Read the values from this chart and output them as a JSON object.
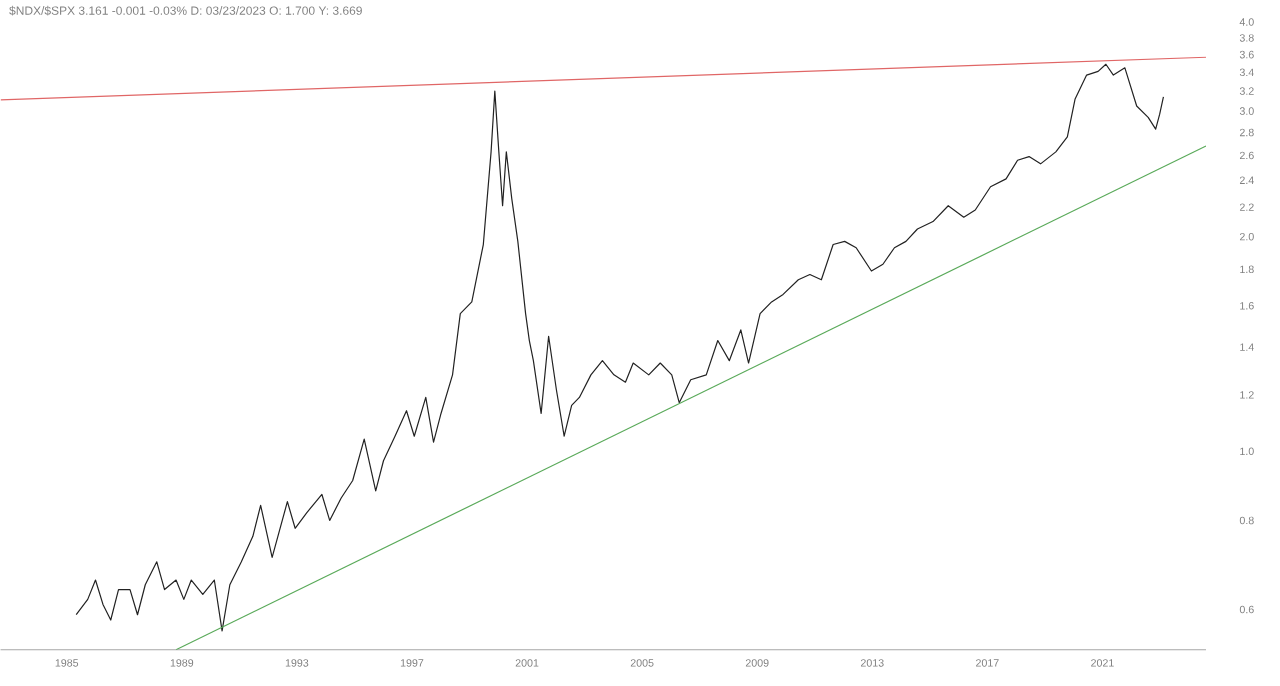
{
  "chart_data": {
    "type": "line",
    "title": "$NDX/$SPX 3.161 -0.001 -0.03% D: 03/23/2023 O: 1.700 Y: 3.669",
    "log": "y",
    "xlim": [
      1982.7,
      2024.6
    ],
    "xticks": [
      1985,
      1989,
      1993,
      1997,
      2001,
      2005,
      2009,
      2013,
      2017,
      2021
    ],
    "ylim": [
      0.527,
      4.0
    ],
    "yticks": [
      0.6,
      0.8,
      {
        "value": 1.0,
        "label": "1.0"
      },
      1.2,
      1.4,
      1.6,
      1.8,
      {
        "value": 2.0,
        "label": "2.0"
      },
      2.2,
      2.4,
      2.6,
      2.8,
      {
        "value": 3.0,
        "label": "3.0"
      },
      3.2,
      3.4,
      3.6,
      3.8,
      {
        "value": 4.0,
        "label": "4.0"
      }
    ],
    "series": [
      {
        "color": "#222222",
        "x": [
          1985.33,
          1985.73,
          1986.0,
          1986.26,
          1986.53,
          1986.8,
          1987.2,
          1987.46,
          1987.73,
          1988.13,
          1988.4,
          1988.8,
          1989.07,
          1989.33,
          1989.73,
          1990.13,
          1990.4,
          1990.67,
          1991.07,
          1991.47,
          1991.74,
          1992.14,
          1992.67,
          1992.94,
          1993.34,
          1993.87,
          1994.14,
          1994.54,
          1994.94,
          1995.34,
          1995.74,
          1996.01,
          1996.41,
          1996.81,
          1997.08,
          1997.48,
          1997.75,
          1998.01,
          1998.41,
          1998.68,
          1999.08,
          1999.48,
          1999.75,
          1999.88,
          2000.02,
          2000.15,
          2000.28,
          2000.47,
          2000.68,
          2000.95,
          2001.08,
          2001.22,
          2001.49,
          2001.75,
          2002.02,
          2002.29,
          2002.55,
          2002.82,
          2003.22,
          2003.62,
          2004.02,
          2004.42,
          2004.69,
          2005.23,
          2005.63,
          2006.03,
          2006.29,
          2006.69,
          2007.23,
          2007.63,
          2008.03,
          2008.43,
          2008.7,
          2009.1,
          2009.5,
          2009.9,
          2010.43,
          2010.83,
          2011.23,
          2011.64,
          2012.04,
          2012.44,
          2012.97,
          2013.37,
          2013.77,
          2014.17,
          2014.57,
          2015.11,
          2015.64,
          2016.18,
          2016.58,
          2017.11,
          2017.65,
          2018.05,
          2018.45,
          2018.85,
          2019.38,
          2019.78,
          2020.05,
          2020.45,
          2020.85,
          2021.12,
          2021.38,
          2021.78,
          2022.19,
          2022.59,
          2022.85,
          2022.99,
          2023.12
        ],
        "values": [
          0.59,
          0.62,
          0.66,
          0.61,
          0.58,
          0.64,
          0.64,
          0.59,
          0.65,
          0.7,
          0.64,
          0.66,
          0.62,
          0.66,
          0.63,
          0.66,
          0.56,
          0.65,
          0.7,
          0.76,
          0.84,
          0.71,
          0.85,
          0.78,
          0.82,
          0.87,
          0.8,
          0.86,
          0.91,
          1.04,
          0.88,
          0.97,
          1.05,
          1.14,
          1.05,
          1.19,
          1.03,
          1.13,
          1.28,
          1.56,
          1.62,
          1.95,
          2.63,
          3.2,
          2.63,
          2.21,
          2.63,
          2.26,
          1.97,
          1.56,
          1.43,
          1.34,
          1.13,
          1.45,
          1.22,
          1.05,
          1.16,
          1.19,
          1.28,
          1.34,
          1.28,
          1.25,
          1.33,
          1.28,
          1.33,
          1.28,
          1.17,
          1.26,
          1.28,
          1.43,
          1.34,
          1.48,
          1.33,
          1.56,
          1.62,
          1.66,
          1.74,
          1.77,
          1.74,
          1.95,
          1.97,
          1.93,
          1.79,
          1.83,
          1.93,
          1.97,
          2.05,
          2.1,
          2.21,
          2.13,
          2.18,
          2.35,
          2.41,
          2.56,
          2.59,
          2.53,
          2.63,
          2.76,
          3.12,
          3.37,
          3.41,
          3.49,
          3.37,
          3.45,
          3.05,
          2.94,
          2.83,
          2.97,
          3.14
        ]
      },
      {
        "color": "#e06666",
        "x": [
          1982.7,
          2024.6
        ],
        "values": [
          3.11,
          3.57
        ]
      },
      {
        "color": "#5aaa5a",
        "x": [
          1988.8,
          2024.6
        ],
        "values": [
          0.527,
          2.68
        ]
      }
    ]
  }
}
